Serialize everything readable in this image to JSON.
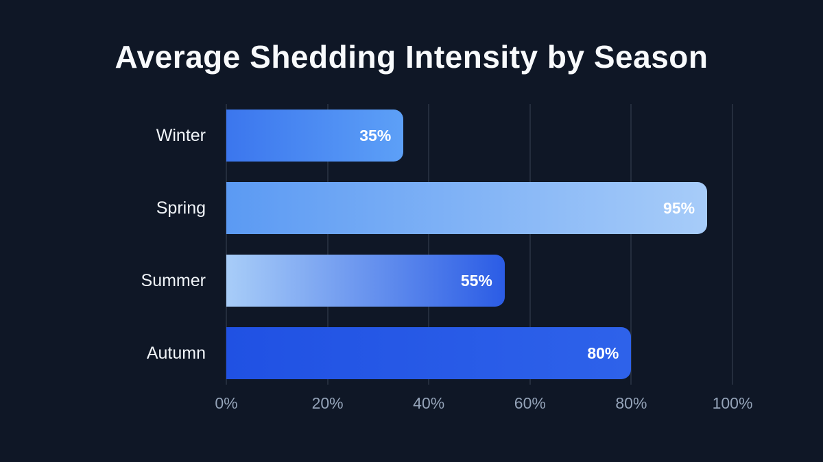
{
  "page": {
    "background": "#0f1726",
    "title_color": "#f8fafc"
  },
  "chart_data": {
    "type": "bar",
    "orientation": "horizontal",
    "title": "Average Shedding Intensity by Season",
    "categories": [
      "Winter",
      "Spring",
      "Summer",
      "Autumn"
    ],
    "values": [
      35,
      95,
      55,
      80
    ],
    "value_labels": [
      "35%",
      "95%",
      "55%",
      "80%"
    ],
    "xlabel": "",
    "ylabel": "",
    "xlim": [
      0,
      100
    ],
    "x_ticks": [
      {
        "value": 0,
        "label": "0%"
      },
      {
        "value": 20,
        "label": "20%"
      },
      {
        "value": 40,
        "label": "40%"
      },
      {
        "value": 60,
        "label": "60%"
      },
      {
        "value": 80,
        "label": "80%"
      },
      {
        "value": 100,
        "label": "100%"
      }
    ],
    "grid": true,
    "legend": false,
    "bar_gradients": [
      {
        "from": "#3b76ee",
        "to": "#5da0f7"
      },
      {
        "from": "#5b9af3",
        "to": "#a7ccf9"
      },
      {
        "from": "#a8cdf8",
        "to": "#2b5ce5"
      },
      {
        "from": "#2051e3",
        "to": "#2e62ea"
      }
    ],
    "colors": {
      "grid": "rgba(148,163,184,0.16)",
      "tick_label": "#94a3b8",
      "category_label": "#f1f5f9",
      "value_label": "#ffffff"
    }
  }
}
